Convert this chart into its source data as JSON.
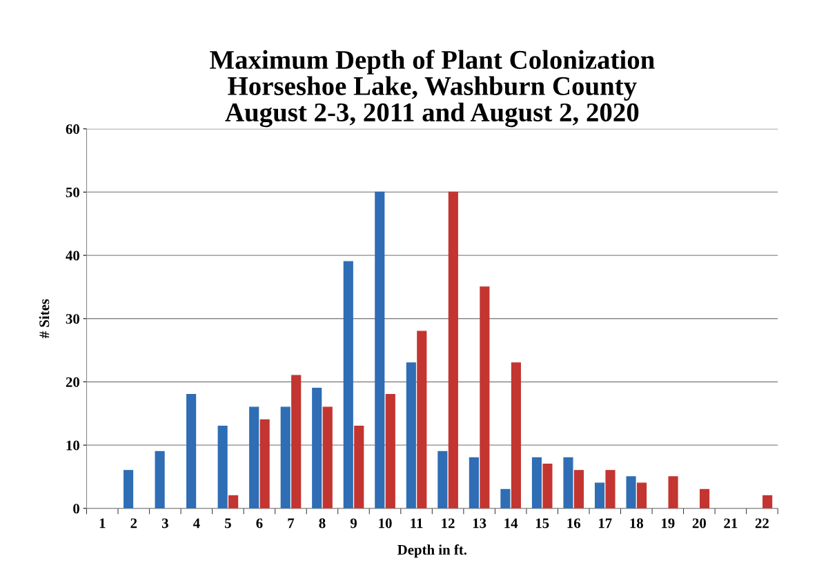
{
  "chart_data": {
    "type": "bar",
    "title": "Maximum Depth of Plant Colonization\nHorseshoe Lake, Washburn County\nAugust 2-3, 2011 and August 2, 2020",
    "xlabel": "Depth in ft.",
    "ylabel": "# Sites",
    "categories": [
      "1",
      "2",
      "3",
      "4",
      "5",
      "6",
      "7",
      "8",
      "9",
      "10",
      "11",
      "12",
      "13",
      "14",
      "15",
      "16",
      "17",
      "18",
      "19",
      "20",
      "21",
      "22"
    ],
    "series": [
      {
        "color": "#2f6db5",
        "values": [
          null,
          6,
          9,
          18,
          13,
          16,
          16,
          19,
          39,
          50,
          23,
          9,
          8,
          3,
          8,
          8,
          4,
          5,
          null,
          null,
          null,
          null
        ]
      },
      {
        "color": "#c33530",
        "values": [
          null,
          null,
          null,
          null,
          2,
          14,
          21,
          16,
          13,
          18,
          28,
          50,
          35,
          23,
          7,
          6,
          6,
          4,
          5,
          3,
          null,
          2
        ]
      }
    ],
    "ylim": [
      0,
      60
    ],
    "yticks": [
      0,
      10,
      20,
      30,
      40,
      50,
      60
    ],
    "grid": "y",
    "legend": false
  }
}
